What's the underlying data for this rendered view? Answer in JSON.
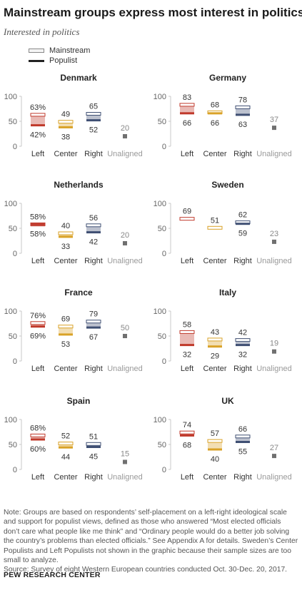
{
  "title": "Mainstream groups express most interest in politics",
  "subtitle": "Interested in politics",
  "legend": {
    "mainstream": "Mainstream",
    "populist": "Populist"
  },
  "colors": {
    "left": "#c0392b",
    "center": "#d9a227",
    "right": "#3f4f73",
    "unaligned": "#707070",
    "axis": "#c8c8c8"
  },
  "note": "Note: Groups are based on respondents’ self-placement on a left-right ideological scale and support for populist views, defined as those who answered “Most elected officials don’t care what people like me think” and “Ordinary people would do a better job solving the country’s problems than elected officials.” See Appendix A for details. Sweden’s Center Populists and Left Populists not shown in the graphic because their sample sizes are too small to analyze.",
  "source_note": "Source: Survey of eight Western European countries conducted Oct. 30-Dec. 20, 2017.",
  "source": "PEW RESEARCH CENTER",
  "chart_data": {
    "type": "bar",
    "categories": [
      "Left",
      "Center",
      "Right",
      "Unaligned"
    ],
    "yticks": [
      0,
      50,
      100
    ],
    "ylim": [
      0,
      100
    ],
    "panels": [
      {
        "country": "Denmark",
        "mainstream": [
          63,
          49,
          65,
          null
        ],
        "populist": [
          42,
          38,
          52,
          null
        ],
        "unaligned": 20,
        "mainstream_labels": [
          "63%",
          "49",
          "65",
          ""
        ],
        "populist_labels": [
          "42%",
          "38",
          "52",
          ""
        ],
        "unaligned_label": "20"
      },
      {
        "country": "Germany",
        "mainstream": [
          83,
          68,
          78,
          null
        ],
        "populist": [
          66,
          66,
          63,
          null
        ],
        "unaligned": 37,
        "mainstream_labels": [
          "83",
          "68",
          "78",
          ""
        ],
        "populist_labels": [
          "66",
          "66",
          "63",
          ""
        ],
        "unaligned_label": "37"
      },
      {
        "country": "Netherlands",
        "mainstream": [
          58,
          40,
          56,
          null
        ],
        "populist": [
          58,
          33,
          42,
          null
        ],
        "unaligned": 20,
        "mainstream_labels": [
          "58%",
          "40",
          "56",
          ""
        ],
        "populist_labels": [
          "58%",
          "33",
          "42",
          ""
        ],
        "unaligned_label": "20"
      },
      {
        "country": "Sweden",
        "mainstream": [
          69,
          51,
          62,
          null
        ],
        "populist": [
          null,
          null,
          59,
          null
        ],
        "unaligned": 23,
        "mainstream_labels": [
          "69",
          "51",
          "62",
          ""
        ],
        "populist_labels": [
          "",
          "",
          "59",
          ""
        ],
        "unaligned_label": "23"
      },
      {
        "country": "France",
        "mainstream": [
          76,
          69,
          79,
          null
        ],
        "populist": [
          69,
          53,
          67,
          null
        ],
        "unaligned": 50,
        "mainstream_labels": [
          "76%",
          "69",
          "79",
          ""
        ],
        "populist_labels": [
          "69%",
          "53",
          "67",
          ""
        ],
        "unaligned_label": "50"
      },
      {
        "country": "Italy",
        "mainstream": [
          58,
          43,
          42,
          null
        ],
        "populist": [
          32,
          29,
          32,
          null
        ],
        "unaligned": 19,
        "mainstream_labels": [
          "58",
          "43",
          "42",
          ""
        ],
        "populist_labels": [
          "32",
          "29",
          "32",
          ""
        ],
        "unaligned_label": "19"
      },
      {
        "country": "Spain",
        "mainstream": [
          68,
          52,
          51,
          null
        ],
        "populist": [
          60,
          44,
          45,
          null
        ],
        "unaligned": 15,
        "mainstream_labels": [
          "68%",
          "52",
          "51",
          ""
        ],
        "populist_labels": [
          "60%",
          "44",
          "45",
          ""
        ],
        "unaligned_label": "15"
      },
      {
        "country": "UK",
        "mainstream": [
          74,
          57,
          66,
          null
        ],
        "populist": [
          68,
          40,
          55,
          null
        ],
        "unaligned": 27,
        "mainstream_labels": [
          "74",
          "57",
          "66",
          ""
        ],
        "populist_labels": [
          "68",
          "40",
          "55",
          ""
        ],
        "unaligned_label": "27"
      }
    ]
  }
}
